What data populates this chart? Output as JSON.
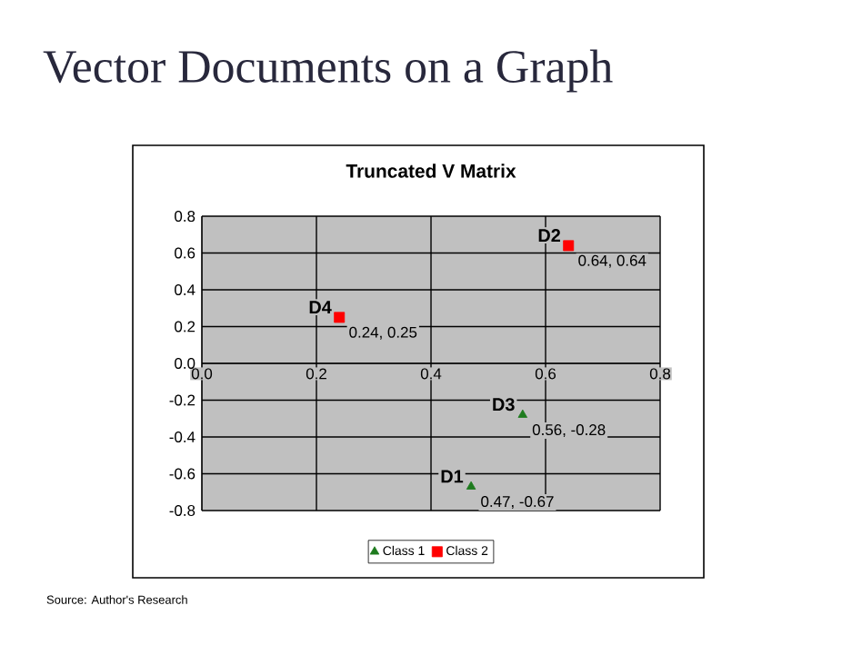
{
  "chart_data": {
    "type": "scatter",
    "title": "Vector Documents on a Graph",
    "subtitle": "Truncated V Matrix",
    "series": [
      {
        "name": "Class 1",
        "color": "#1e7b1e",
        "marker": "triangle",
        "x": [
          0.47,
          0.56
        ],
        "values": [
          -0.67,
          -0.28
        ]
      },
      {
        "name": "Class 2",
        "color": "#ff0000",
        "marker": "square",
        "x": [
          0.64,
          0.24
        ],
        "values": [
          0.64,
          0.25
        ]
      }
    ],
    "xlim": [
      0,
      0.8
    ],
    "ylim": [
      -0.8,
      0.8
    ],
    "xticks": [
      {
        "value": 0,
        "label": "0.0"
      },
      0.2,
      0.4,
      0.6,
      0.8
    ],
    "yticks": [
      -0.8,
      -0.6,
      -0.4,
      -0.2,
      {
        "value": 0,
        "label": "0.0"
      },
      0.2,
      0.4,
      0.6,
      0.8
    ],
    "grid": true,
    "legend": "bottom",
    "annotations": [
      {
        "text": "D1",
        "x": 0.47,
        "y": -0.67
      },
      {
        "text": "0.47, -0.67",
        "x": 0.47,
        "y": -0.67
      },
      {
        "text": "D3",
        "x": 0.56,
        "y": -0.28
      },
      {
        "text": "0.56, -0.28",
        "x": 0.56,
        "y": -0.28
      },
      {
        "text": "D2",
        "x": 0.64,
        "y": 0.64
      },
      {
        "text": "0.64, 0.64",
        "x": 0.64,
        "y": 0.64
      },
      {
        "text": "D4",
        "x": 0.24,
        "y": 0.25
      },
      {
        "text": "0.24, 0.25",
        "x": 0.24,
        "y": 0.25
      },
      "Source: Author's Research"
    ]
  }
}
